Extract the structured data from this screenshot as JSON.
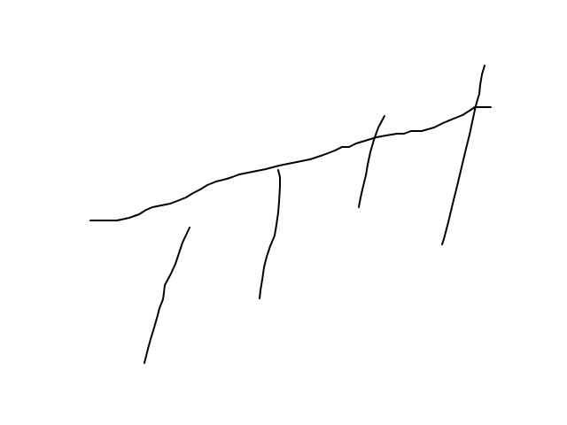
{
  "sketch": {
    "stroke_color": "#000000",
    "background_color": "#ffffff",
    "strokes": [
      {
        "name": "main-curve-stroke"
      },
      {
        "name": "branch-line-1"
      },
      {
        "name": "branch-line-2"
      },
      {
        "name": "branch-line-3"
      },
      {
        "name": "branch-line-4"
      }
    ]
  }
}
